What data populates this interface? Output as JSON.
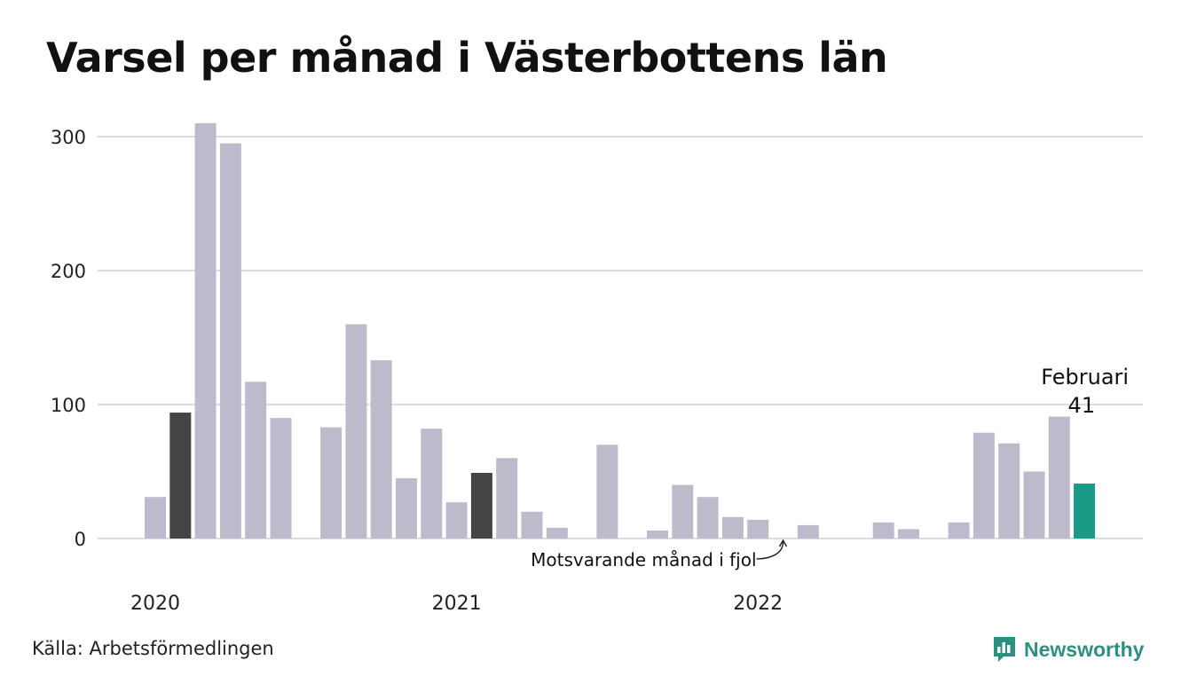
{
  "title": "Varsel per månad i Västerbottens län",
  "source": "Källa: Arbetsförmedlingen",
  "brand": {
    "name": "Newsworthy",
    "icon": "newsworthy-logo-icon",
    "color": "#2d8f7f"
  },
  "colors": {
    "default_bar": "#bdbbcb",
    "previous_year_bar": "#444444",
    "highlight_bar": "#1a9a87",
    "grid": "#dcdce0"
  },
  "chart_data": {
    "type": "bar",
    "title": "Varsel per månad i Västerbottens län",
    "xlabel": "",
    "ylabel": "",
    "ylim": [
      0,
      310
    ],
    "yticks": [
      0,
      100,
      200,
      300
    ],
    "year_labels": [
      {
        "label": "2020",
        "month_index": 0
      },
      {
        "label": "2021",
        "month_index": 12
      },
      {
        "label": "2022",
        "month_index": 24
      }
    ],
    "months": [
      "2020-01",
      "2020-02",
      "2020-03",
      "2020-04",
      "2020-05",
      "2020-06",
      "2020-07",
      "2020-08",
      "2020-09",
      "2020-10",
      "2020-11",
      "2020-12",
      "2021-01",
      "2021-02",
      "2021-03",
      "2021-04",
      "2021-05",
      "2021-06",
      "2021-07",
      "2021-08",
      "2021-09",
      "2021-10",
      "2021-11",
      "2021-12",
      "2022-01",
      "2022-02",
      "2022-03",
      "2022-04",
      "2022-05",
      "2022-06",
      "2022-07",
      "2022-08",
      "2022-09",
      "2022-10",
      "2022-11",
      "2022-12",
      "2023-01",
      "2023-02"
    ],
    "values": [
      31,
      94,
      310,
      295,
      117,
      90,
      0,
      83,
      160,
      133,
      45,
      82,
      27,
      49,
      60,
      20,
      8,
      0,
      70,
      0,
      6,
      40,
      31,
      16,
      14,
      0,
      10,
      0,
      0,
      12,
      7,
      0,
      12,
      79,
      71,
      50,
      91,
      41
    ],
    "previous_year_indices": [
      1,
      13
    ],
    "highlight_index": 37,
    "highlight_label": "Februari",
    "highlight_value_label": "41",
    "annotation": {
      "text": "Motsvarande månad i fjol",
      "month_index": 25
    },
    "grid": true,
    "legend": "none"
  }
}
